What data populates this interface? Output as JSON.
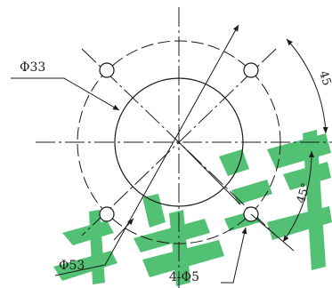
{
  "drawing": {
    "labels": {
      "dia_outer_ring": "Φ33",
      "dia_bolt_circle": "Φ53",
      "holes": "4-Φ5",
      "angle_upper": "45",
      "angle_lower": "45°"
    },
    "watermark": {
      "text": "",
      "color": "#1aa64a"
    },
    "colors": {
      "line": "#1a1a1a",
      "background": "#ffffff"
    }
  }
}
